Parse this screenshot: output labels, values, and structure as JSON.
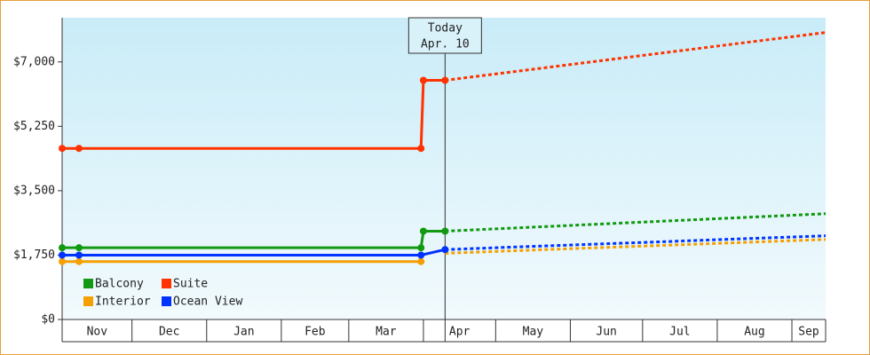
{
  "chart_data": {
    "type": "line",
    "xlim": [
      1,
      318
    ],
    "ylim": [
      0,
      8200
    ],
    "yticks": [
      {
        "value": 0,
        "label": "$0"
      },
      {
        "value": 1750,
        "label": "$1,750"
      },
      {
        "value": 3500,
        "label": "$3,500"
      },
      {
        "value": 5250,
        "label": "$5,250"
      },
      {
        "value": 7000,
        "label": "$7,000"
      }
    ],
    "xticks": [
      {
        "value": 0,
        "label": "Nov"
      },
      {
        "value": 30,
        "label": "Dec"
      },
      {
        "value": 61,
        "label": "Jan"
      },
      {
        "value": 92,
        "label": "Feb"
      },
      {
        "value": 120,
        "label": "Mar"
      },
      {
        "value": 151,
        "label": "Apr"
      },
      {
        "value": 181,
        "label": "May"
      },
      {
        "value": 212,
        "label": "Jun"
      },
      {
        "value": 242,
        "label": "Jul"
      },
      {
        "value": 273,
        "label": "Aug"
      },
      {
        "value": 304,
        "label": "Sep"
      }
    ],
    "today": {
      "x": 160,
      "label": "Today",
      "date": "Apr. 10"
    },
    "legend": "lower left",
    "series": [
      {
        "name": "Balcony",
        "color": "#119911",
        "x": [
          1,
          8,
          150,
          151,
          160
        ],
        "values": [
          1950,
          1950,
          1950,
          2400,
          2400
        ],
        "forecast_x": [
          160,
          318
        ],
        "forecast_values": [
          2400,
          2875
        ]
      },
      {
        "name": "Suite",
        "color": "#ff3300",
        "x": [
          1,
          8,
          150,
          151,
          160
        ],
        "values": [
          4650,
          4650,
          4650,
          6500,
          6500
        ],
        "forecast_x": [
          160,
          318
        ],
        "forecast_values": [
          6500,
          7800
        ]
      },
      {
        "name": "Interior",
        "color": "#f5a000",
        "x": [
          1,
          8,
          150
        ],
        "values": [
          1575,
          1575,
          1575
        ],
        "forecast_x": [
          160,
          318
        ],
        "forecast_values": [
          1800,
          2175
        ]
      },
      {
        "name": "Ocean View",
        "color": "#0033ff",
        "x": [
          1,
          8,
          150,
          160
        ],
        "values": [
          1750,
          1750,
          1750,
          1900
        ],
        "forecast_x": [
          160,
          318
        ],
        "forecast_values": [
          1900,
          2275
        ]
      }
    ]
  }
}
